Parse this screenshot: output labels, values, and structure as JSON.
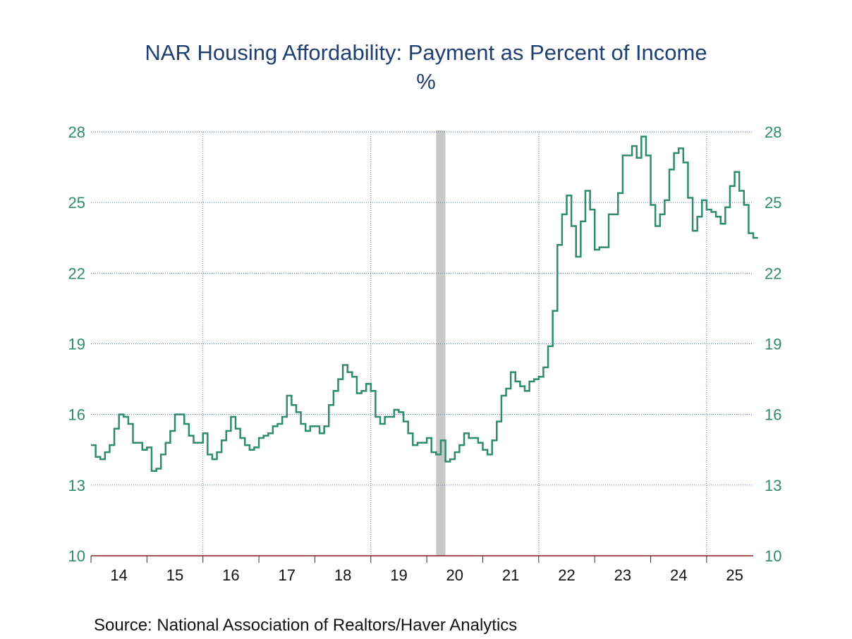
{
  "chart_data": {
    "type": "line",
    "title": "NAR Housing Affordability: Payment as Percent of Income",
    "subtitle": "%",
    "source": "Source:  National Association of Realtors/Haver Analytics",
    "ylim": [
      10,
      28
    ],
    "yticks": [
      10,
      13,
      16,
      19,
      22,
      25,
      28
    ],
    "ytick_labels": [
      "10",
      "13",
      "16",
      "19",
      "22",
      "25",
      "28"
    ],
    "xlim": [
      2014.0,
      2025.833
    ],
    "xtick_labels": [
      "14",
      "15",
      "16",
      "17",
      "18",
      "19",
      "20",
      "21",
      "22",
      "23",
      "24",
      "25"
    ],
    "xtick_years": [
      2014,
      2015,
      2016,
      2017,
      2018,
      2019,
      2020,
      2021,
      2022,
      2023,
      2024,
      2025
    ],
    "vgrid_years": [
      2016,
      2019,
      2022,
      2025
    ],
    "recession": {
      "start": 2020.167,
      "end": 2020.333
    },
    "grid": true,
    "colors": {
      "line": "#2e8b6e",
      "ticks": "#2e8b6e",
      "grid": "#4a6fd1",
      "axis": "#8b1a1a",
      "title": "#1f3f73",
      "recession": "#c8c8c8"
    },
    "series": [
      {
        "start": "2014-01",
        "frequency": "monthly",
        "values": [
          14.7,
          14.2,
          14.1,
          14.4,
          14.7,
          15.4,
          16.0,
          15.9,
          15.6,
          14.8,
          14.8,
          14.5,
          14.6,
          13.6,
          13.7,
          14.3,
          14.8,
          15.3,
          16.0,
          16.0,
          15.6,
          15.1,
          14.8,
          14.8,
          15.2,
          14.3,
          14.1,
          14.4,
          14.9,
          15.3,
          15.9,
          15.4,
          15.0,
          14.7,
          14.5,
          14.6,
          15.0,
          15.1,
          15.2,
          15.5,
          15.6,
          15.9,
          16.8,
          16.4,
          16.1,
          15.6,
          15.3,
          15.5,
          15.5,
          15.2,
          15.5,
          16.4,
          17.0,
          17.5,
          18.1,
          17.8,
          17.6,
          16.9,
          17.0,
          17.3,
          17.0,
          15.9,
          15.6,
          15.9,
          15.9,
          16.2,
          16.1,
          15.7,
          15.2,
          14.7,
          14.8,
          14.8,
          15.0,
          14.4,
          14.3,
          14.9,
          14.0,
          14.1,
          14.4,
          14.7,
          15.2,
          15.0,
          15.0,
          14.8,
          14.5,
          14.3,
          14.9,
          15.7,
          16.8,
          17.1,
          17.8,
          17.4,
          17.2,
          17.0,
          17.4,
          17.5,
          17.6,
          18.0,
          18.9,
          20.4,
          23.2,
          24.5,
          25.3,
          24.0,
          22.7,
          24.2,
          25.5,
          24.7,
          23.0,
          23.1,
          23.1,
          24.5,
          24.5,
          25.4,
          27.0,
          27.0,
          27.4,
          26.9,
          27.8,
          27.0,
          24.9,
          24.0,
          24.5,
          25.1,
          26.4,
          27.1,
          27.3,
          26.7,
          25.2,
          23.8,
          24.4,
          25.1,
          24.7,
          24.6,
          24.4,
          24.1,
          24.8,
          25.7,
          26.3,
          25.5,
          24.9,
          23.7,
          23.5
        ]
      }
    ]
  }
}
